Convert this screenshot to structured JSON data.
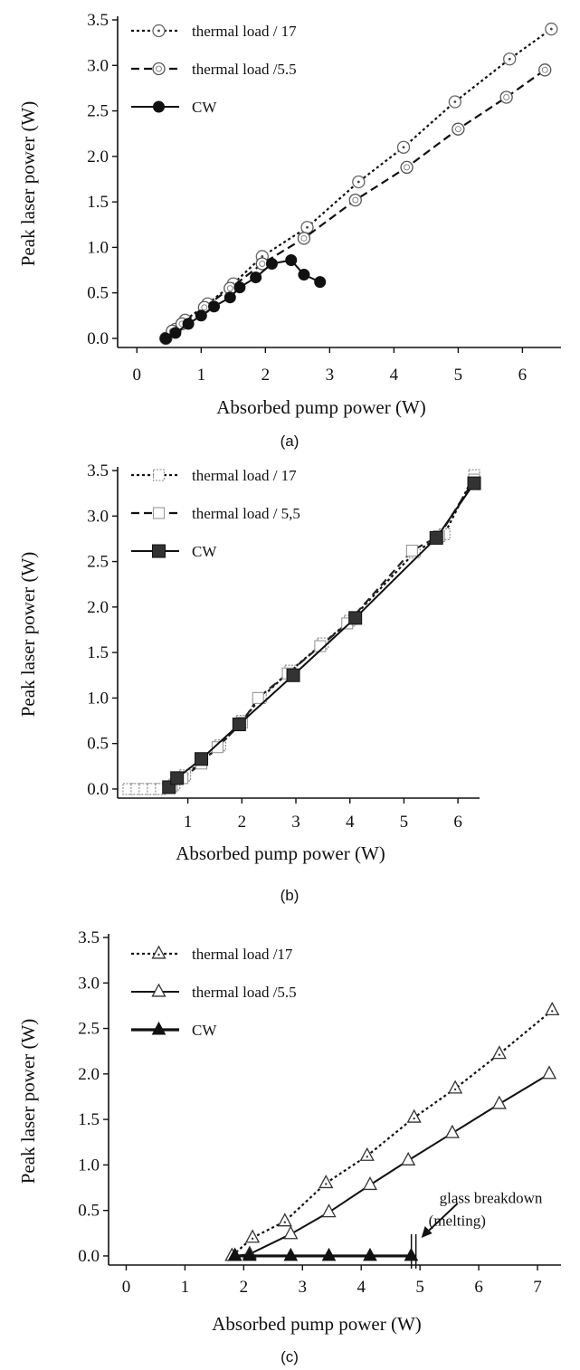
{
  "chart_data": [
    {
      "type": "line",
      "panel_label": "(a)",
      "xlabel": "Absorbed pump power (W)",
      "ylabel": "Peak laser power (W)",
      "xlim": [
        -0.3,
        6.6
      ],
      "ylim": [
        -0.1,
        3.5
      ],
      "xticks": [
        0,
        1,
        2,
        3,
        4,
        5,
        6
      ],
      "yticks": [
        "0.0",
        "0.5",
        "1.0",
        "1.5",
        "2.0",
        "2.5",
        "3.0",
        "3.5"
      ],
      "legend_position": "top-left",
      "series": [
        {
          "name": "thermal load / 17",
          "marker": "circle-dot",
          "line": "dotted",
          "x": [
            0.45,
            0.6,
            0.75,
            1.1,
            1.5,
            1.95,
            2.65,
            3.45,
            4.15,
            4.95,
            5.8,
            6.45
          ],
          "y": [
            0.0,
            0.1,
            0.2,
            0.38,
            0.6,
            0.9,
            1.22,
            1.72,
            2.1,
            2.6,
            3.07,
            3.4
          ]
        },
        {
          "name": "thermal load /5.5",
          "marker": "circle-ring",
          "line": "dashed",
          "x": [
            0.45,
            0.55,
            0.7,
            1.05,
            1.45,
            1.95,
            2.6,
            3.4,
            4.2,
            5.0,
            5.75,
            6.35
          ],
          "y": [
            0.0,
            0.08,
            0.16,
            0.34,
            0.55,
            0.82,
            1.1,
            1.52,
            1.88,
            2.3,
            2.65,
            2.95
          ]
        },
        {
          "name": "CW",
          "marker": "circle-filled",
          "line": "solid",
          "x": [
            0.45,
            0.6,
            0.8,
            1.0,
            1.2,
            1.45,
            1.6,
            1.85,
            2.1,
            2.4,
            2.6,
            2.85
          ],
          "y": [
            0.0,
            0.06,
            0.16,
            0.25,
            0.35,
            0.45,
            0.56,
            0.67,
            0.82,
            0.86,
            0.7,
            0.62
          ]
        }
      ]
    },
    {
      "type": "line",
      "panel_label": "(b)",
      "xlabel": "Absorbed pump power (W)",
      "ylabel": "Peak laser power (W)",
      "xlim": [
        -0.3,
        6.4
      ],
      "ylim": [
        -0.1,
        3.5
      ],
      "xticks": [
        1,
        2,
        3,
        4,
        5,
        6
      ],
      "yticks": [
        "0.0",
        "0.5",
        "1.0",
        "1.5",
        "2.0",
        "2.5",
        "3.0",
        "3.5"
      ],
      "legend_position": "top-left",
      "series": [
        {
          "name": "thermal load / 17",
          "marker": "square-dot",
          "line": "dotted",
          "x": [
            -0.1,
            0.05,
            0.2,
            0.35,
            0.5,
            0.75,
            0.95,
            1.25,
            1.6,
            2.0,
            2.35,
            2.9,
            3.5,
            4.0,
            5.2,
            5.75,
            6.3
          ],
          "y": [
            0.0,
            0.0,
            0.0,
            0.0,
            0.0,
            0.05,
            0.15,
            0.3,
            0.48,
            0.75,
            1.0,
            1.3,
            1.6,
            1.85,
            2.6,
            2.8,
            3.45
          ]
        },
        {
          "name": "thermal load / 5,5",
          "marker": "square-open",
          "line": "dashed",
          "x": [
            0.7,
            0.9,
            1.25,
            1.55,
            2.0,
            2.3,
            2.85,
            3.45,
            3.95,
            5.15,
            5.65,
            6.3
          ],
          "y": [
            0.03,
            0.12,
            0.28,
            0.46,
            0.73,
            1.0,
            1.27,
            1.57,
            1.82,
            2.62,
            2.78,
            3.4
          ]
        },
        {
          "name": "CW",
          "marker": "square-filled",
          "line": "solid",
          "x": [
            0.65,
            0.8,
            1.25,
            1.95,
            2.95,
            4.1,
            5.6,
            6.3
          ],
          "y": [
            0.02,
            0.12,
            0.33,
            0.71,
            1.25,
            1.88,
            2.76,
            3.36
          ]
        }
      ]
    },
    {
      "type": "line",
      "panel_label": "(c)",
      "xlabel": "Absorbed pump power (W)",
      "ylabel": "Peak laser power (W)",
      "xlim": [
        -0.3,
        7.4
      ],
      "ylim": [
        -0.1,
        3.5
      ],
      "xticks": [
        0,
        1,
        2,
        3,
        4,
        5,
        6,
        7
      ],
      "yticks": [
        "0.0",
        "0.5",
        "1.0",
        "1.5",
        "2.0",
        "2.5",
        "3.0",
        "3.5"
      ],
      "legend_position": "top-left",
      "annotation": {
        "lines": [
          "glass breakdown",
          "(melting)"
        ],
        "arrow_to": [
          4.9,
          0.0
        ]
      },
      "series": [
        {
          "name": "thermal load /17",
          "marker": "triangle-dot",
          "line": "dotted",
          "x": [
            1.8,
            2.15,
            2.7,
            3.4,
            4.1,
            4.9,
            5.6,
            6.35,
            7.25
          ],
          "y": [
            0.0,
            0.2,
            0.38,
            0.8,
            1.1,
            1.52,
            1.84,
            2.22,
            2.7
          ]
        },
        {
          "name": "thermal load /5.5",
          "marker": "triangle-open",
          "line": "solid",
          "x": [
            1.85,
            2.1,
            2.8,
            3.45,
            4.15,
            4.8,
            5.55,
            6.35,
            7.2
          ],
          "y": [
            0.0,
            0.02,
            0.24,
            0.48,
            0.78,
            1.05,
            1.35,
            1.67,
            2.0
          ]
        },
        {
          "name": "CW",
          "marker": "triangle-filled",
          "line": "thick",
          "x": [
            1.85,
            2.1,
            2.8,
            3.45,
            4.15,
            4.85
          ],
          "y": [
            0.0,
            0.0,
            0.0,
            0.0,
            0.0,
            0.0
          ]
        }
      ]
    }
  ]
}
